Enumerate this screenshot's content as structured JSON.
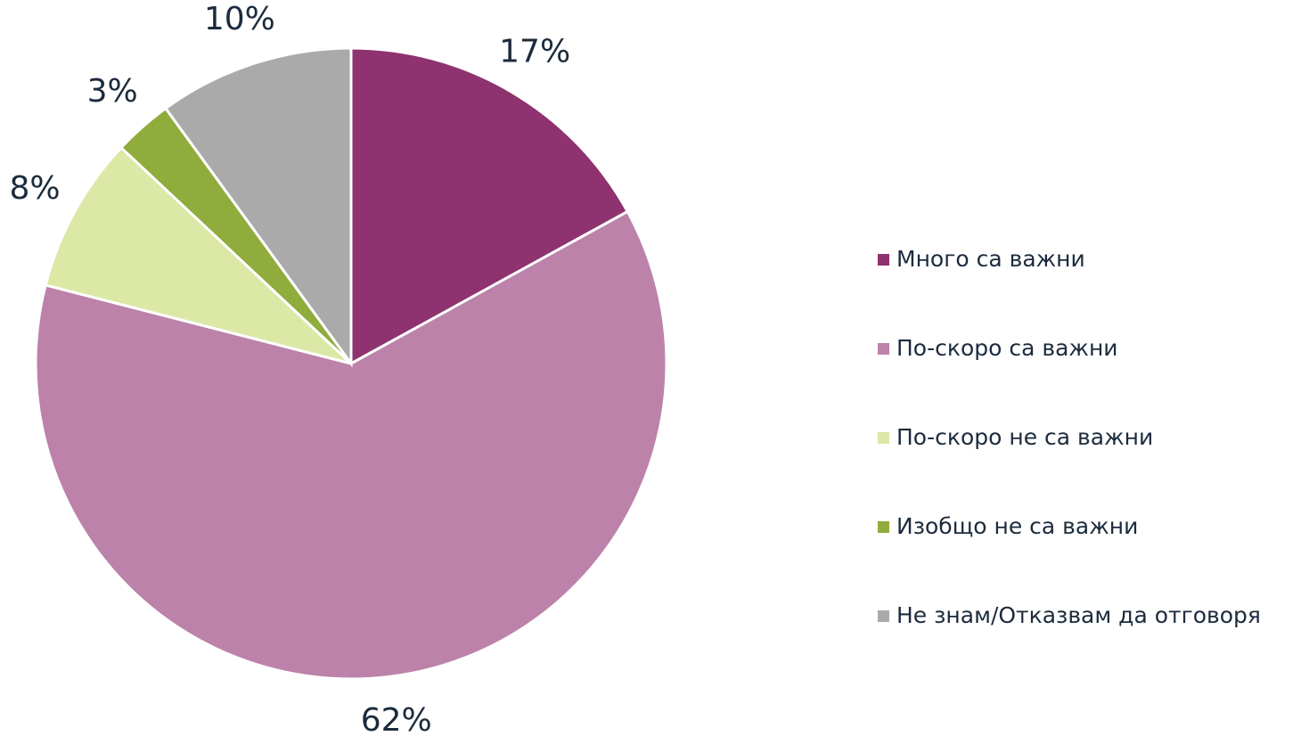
{
  "chart_data": {
    "type": "pie",
    "categories": [
      "Много са важни",
      "По-скоро са важни",
      "По-скоро не са важни",
      "Изобщо не са важни",
      "Не знам/Отказвам да отговоря"
    ],
    "values": [
      17,
      62,
      8,
      3,
      10
    ],
    "value_labels": [
      "17%",
      "62%",
      "8%",
      "3%",
      "10%"
    ],
    "colors": [
      "#8e3270",
      "#bc82a9",
      "#dce8a6",
      "#8fac3c",
      "#aaaaab"
    ],
    "legend": "right"
  }
}
